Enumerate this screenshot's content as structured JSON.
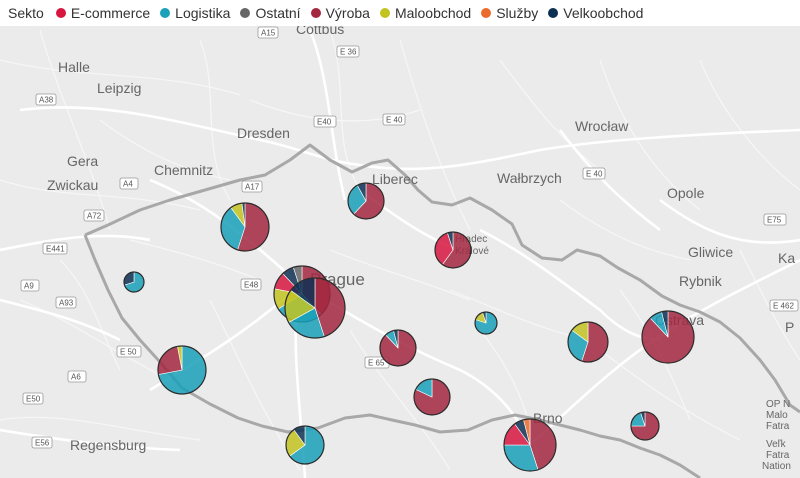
{
  "legend": {
    "title": "Sekto",
    "items": [
      {
        "label": "E-commerce",
        "color": "#d6163f"
      },
      {
        "label": "Logistika",
        "color": "#1aa0b8"
      },
      {
        "label": "Ostatní",
        "color": "#666666"
      },
      {
        "label": "Výroba",
        "color": "#a3273f"
      },
      {
        "label": "Maloobchod",
        "color": "#c2c321"
      },
      {
        "label": "Služby",
        "color": "#ea6b2c"
      },
      {
        "label": "Velkoobchod",
        "color": "#0d2f52"
      }
    ]
  },
  "map_labels": {
    "cottbus": "Cottbus",
    "halle": "Halle",
    "leipzig": "Leipzig",
    "dresden": "Dresden",
    "gera": "Gera",
    "chemnitz": "Chemnitz",
    "zwickau": "Zwickau",
    "liberec": "Liberec",
    "walbrzych": "Wałbrzych",
    "wroclaw": "Wrocław",
    "opole": "Opole",
    "gliwice": "Gliwice",
    "rybnik": "Rybnik",
    "ostrava": "Ostrava",
    "hradec": "Hradec",
    "kralove": "Králové",
    "prague": "Prague",
    "brno": "Brno",
    "regensburg": "Regensburg",
    "op_nature": "OP N",
    "malo": "Malo",
    "fatra": "Fatra",
    "velka": "Veľk",
    "fatra2": "Fatra",
    "nation": "Nation",
    "ka": "Ka",
    "p": "P"
  },
  "road_labels": [
    "A15",
    "E 36",
    "A38",
    "E40",
    "E 40",
    "A4",
    "A17",
    "A72",
    "E441",
    "E48",
    "E 40",
    "A9",
    "A93",
    "E 50",
    "A6",
    "E50",
    "E56",
    "E 65",
    "E75",
    "E 462"
  ],
  "pies": [
    {
      "id": "dresden-region",
      "values": [
        {
          "sector": "Výroba",
          "value": 55
        },
        {
          "sector": "Logistika",
          "value": 35
        },
        {
          "sector": "Maloobchod",
          "value": 8
        },
        {
          "sector": "Velkoobchod",
          "value": 2
        }
      ]
    },
    {
      "id": "liberec-region",
      "values": [
        {
          "sector": "Výroba",
          "value": 62
        },
        {
          "sector": "Logistika",
          "value": 30
        },
        {
          "sector": "Velkoobchod",
          "value": 8
        }
      ]
    },
    {
      "id": "hradec-region",
      "values": [
        {
          "sector": "Výroba",
          "value": 60
        },
        {
          "sector": "E-commerce",
          "value": 35
        },
        {
          "sector": "Velkoobchod",
          "value": 5
        }
      ]
    },
    {
      "id": "karlovy-vary",
      "values": [
        {
          "sector": "Logistika",
          "value": 70
        },
        {
          "sector": "Velkoobchod",
          "value": 30
        }
      ]
    },
    {
      "id": "prague-main",
      "values": [
        {
          "sector": "Výroba",
          "value": 38
        },
        {
          "sector": "Logistika",
          "value": 28
        },
        {
          "sector": "Maloobchod",
          "value": 12
        },
        {
          "sector": "E-commerce",
          "value": 10
        },
        {
          "sector": "Velkoobchod",
          "value": 7
        },
        {
          "sector": "Ostatní",
          "value": 5
        }
      ]
    },
    {
      "id": "prague-east",
      "values": [
        {
          "sector": "Výroba",
          "value": 45
        },
        {
          "sector": "Logistika",
          "value": 22
        },
        {
          "sector": "Maloobchod",
          "value": 18
        },
        {
          "sector": "Velkoobchod",
          "value": 15
        }
      ]
    },
    {
      "id": "plzen",
      "values": [
        {
          "sector": "Logistika",
          "value": 72
        },
        {
          "sector": "Výroba",
          "value": 25
        },
        {
          "sector": "Maloobchod",
          "value": 3
        }
      ]
    },
    {
      "id": "kolin",
      "values": [
        {
          "sector": "Výroba",
          "value": 88
        },
        {
          "sector": "Logistika",
          "value": 8
        },
        {
          "sector": "Velkoobchod",
          "value": 4
        }
      ]
    },
    {
      "id": "pardubice-south",
      "values": [
        {
          "sector": "Logistika",
          "value": 80
        },
        {
          "sector": "Maloobchod",
          "value": 15
        },
        {
          "sector": "Velkoobchod",
          "value": 5
        }
      ]
    },
    {
      "id": "jihlava",
      "values": [
        {
          "sector": "Výroba",
          "value": 82
        },
        {
          "sector": "Logistika",
          "value": 18
        }
      ]
    },
    {
      "id": "olomouc",
      "values": [
        {
          "sector": "Výroba",
          "value": 55
        },
        {
          "sector": "Logistika",
          "value": 30
        },
        {
          "sector": "Maloobchod",
          "value": 15
        }
      ]
    },
    {
      "id": "ostrava-region",
      "values": [
        {
          "sector": "Výroba",
          "value": 88
        },
        {
          "sector": "Logistika",
          "value": 8
        },
        {
          "sector": "Velkoobchod",
          "value": 4
        }
      ]
    },
    {
      "id": "ceske-budejovice",
      "values": [
        {
          "sector": "Logistika",
          "value": 65
        },
        {
          "sector": "Maloobchod",
          "value": 25
        },
        {
          "sector": "Velkoobchod",
          "value": 10
        }
      ]
    },
    {
      "id": "brno",
      "values": [
        {
          "sector": "Výroba",
          "value": 45
        },
        {
          "sector": "Logistika",
          "value": 30
        },
        {
          "sector": "E-commerce",
          "value": 15
        },
        {
          "sector": "Velkoobchod",
          "value": 6
        },
        {
          "sector": "Služby",
          "value": 4
        }
      ]
    },
    {
      "id": "zlin",
      "values": [
        {
          "sector": "Výroba",
          "value": 75
        },
        {
          "sector": "Logistika",
          "value": 20
        },
        {
          "sector": "Velkoobchod",
          "value": 5
        }
      ]
    }
  ]
}
